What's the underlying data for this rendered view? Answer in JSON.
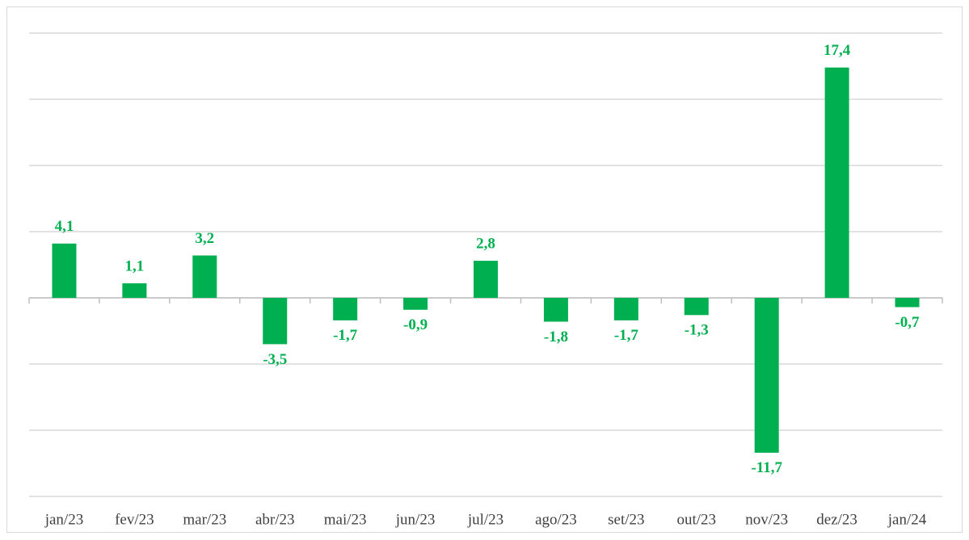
{
  "chart_data": {
    "type": "bar",
    "categories": [
      "jan/23",
      "fev/23",
      "mar/23",
      "abr/23",
      "mai/23",
      "jun/23",
      "jul/23",
      "ago/23",
      "set/23",
      "out/23",
      "nov/23",
      "dez/23",
      "jan/24"
    ],
    "values": [
      4.1,
      1.1,
      3.2,
      -3.5,
      -1.7,
      -0.9,
      2.8,
      -1.8,
      -1.7,
      -1.3,
      -11.7,
      17.4,
      -0.7
    ],
    "value_labels": [
      "4,1",
      "1,1",
      "3,2",
      "-3,5",
      "-1,7",
      "-0,9",
      "2,8",
      "-1,8",
      "-1,7",
      "-1,3",
      "-11,7",
      "17,4",
      "-0,7"
    ],
    "color": "#00b050",
    "ylim": [
      -15,
      20
    ],
    "yticks": [
      -15,
      -10,
      -5,
      0,
      5,
      10,
      15,
      20
    ],
    "grid": true
  }
}
